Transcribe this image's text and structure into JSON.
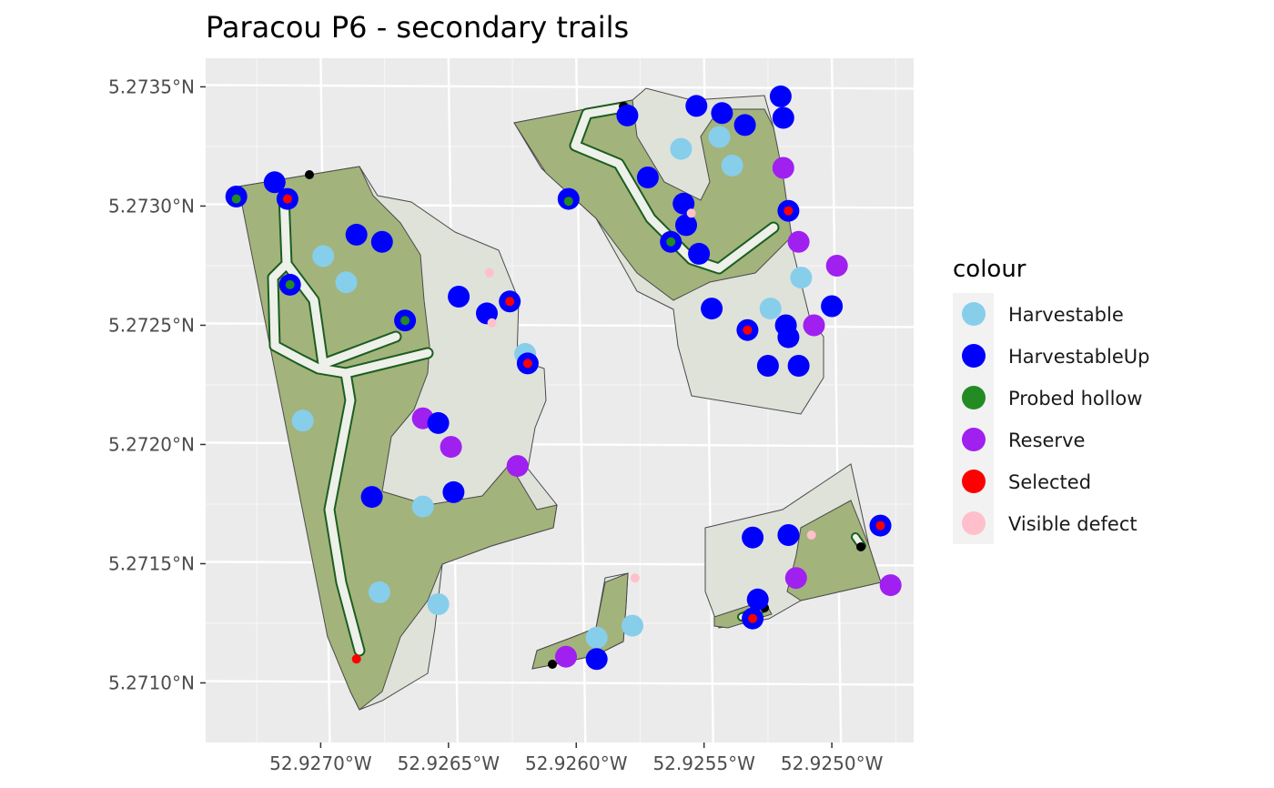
{
  "chart_data": {
    "type": "scatter",
    "title": "Paracou P6 - secondary trails",
    "x_ticks": [
      {
        "value": -52.927,
        "label": "52.9270°W"
      },
      {
        "value": -52.9265,
        "label": "52.9265°W"
      },
      {
        "value": -52.926,
        "label": "52.9260°W"
      },
      {
        "value": -52.9255,
        "label": "52.9255°W"
      },
      {
        "value": -52.925,
        "label": "52.9250°W"
      }
    ],
    "y_ticks": [
      {
        "value": 5.2735,
        "label": "5.2735°N"
      },
      {
        "value": 5.273,
        "label": "5.2730°N"
      },
      {
        "value": 5.2725,
        "label": "5.2725°N"
      },
      {
        "value": 5.272,
        "label": "5.2720°N"
      },
      {
        "value": 5.2715,
        "label": "5.2715°N"
      },
      {
        "value": 5.271,
        "label": "5.2710°N"
      }
    ],
    "xlim": [
      -52.92745,
      -52.92468
    ],
    "ylim": [
      5.27075,
      5.27362
    ],
    "grid": true,
    "legend": {
      "title": "colour",
      "position": "right",
      "entries": [
        {
          "label": "Harvestable",
          "color": "#87CEEB"
        },
        {
          "label": "HarvestableUp",
          "color": "#0000FF"
        },
        {
          "label": "Probed hollow",
          "color": "#228B22"
        },
        {
          "label": "Reserve",
          "color": "#A020F0"
        },
        {
          "label": "Selected",
          "color": "#FF0000"
        },
        {
          "label": "Visible defect",
          "color": "#FFC0CB"
        }
      ]
    },
    "series": [
      {
        "name": "Harvestable",
        "color": "#87CEEB",
        "points": [
          [
            -52.92699,
            5.27279
          ],
          [
            -52.9269,
            5.27268
          ],
          [
            -52.92707,
            5.2721
          ],
          [
            -52.9266,
            5.27174
          ],
          [
            -52.92677,
            5.27138
          ],
          [
            -52.92654,
            5.27133
          ],
          [
            -52.9262,
            5.27238
          ],
          [
            -52.92592,
            5.27119
          ],
          [
            -52.92578,
            5.27124
          ],
          [
            -52.92559,
            5.27324
          ],
          [
            -52.92544,
            5.27329
          ],
          [
            -52.92539,
            5.27317
          ],
          [
            -52.92524,
            5.27257
          ],
          [
            -52.92512,
            5.2727
          ]
        ]
      },
      {
        "name": "HarvestableUp",
        "color": "#0000FF",
        "points": [
          [
            -52.92733,
            5.27304
          ],
          [
            -52.92718,
            5.2731
          ],
          [
            -52.92713,
            5.27303
          ],
          [
            -52.92712,
            5.27267
          ],
          [
            -52.92686,
            5.27288
          ],
          [
            -52.92676,
            5.27285
          ],
          [
            -52.92667,
            5.27252
          ],
          [
            -52.92646,
            5.27262
          ],
          [
            -52.92635,
            5.27255
          ],
          [
            -52.92626,
            5.2726
          ],
          [
            -52.92619,
            5.27234
          ],
          [
            -52.92648,
            5.2718
          ],
          [
            -52.92654,
            5.27209
          ],
          [
            -52.9268,
            5.27178
          ],
          [
            -52.92603,
            5.27303
          ],
          [
            -52.9258,
            5.27338
          ],
          [
            -52.92572,
            5.27312
          ],
          [
            -52.92563,
            5.27285
          ],
          [
            -52.92558,
            5.27301
          ],
          [
            -52.92557,
            5.27292
          ],
          [
            -52.92553,
            5.27342
          ],
          [
            -52.92552,
            5.2728
          ],
          [
            -52.92547,
            5.27257
          ],
          [
            -52.92543,
            5.27339
          ],
          [
            -52.92533,
            5.27248
          ],
          [
            -52.92534,
            5.27334
          ],
          [
            -52.9252,
            5.27346
          ],
          [
            -52.92519,
            5.27337
          ],
          [
            -52.92517,
            5.27298
          ],
          [
            -52.92518,
            5.2725
          ],
          [
            -52.92517,
            5.27245
          ],
          [
            -52.92513,
            5.27233
          ],
          [
            -52.92525,
            5.27233
          ],
          [
            -52.925,
            5.27258
          ],
          [
            -52.92592,
            5.2711
          ],
          [
            -52.92531,
            5.27161
          ],
          [
            -52.92517,
            5.27162
          ],
          [
            -52.92529,
            5.27135
          ],
          [
            -52.92531,
            5.27127
          ],
          [
            -52.92481,
            5.27166
          ]
        ]
      },
      {
        "name": "Probed hollow",
        "color": "#228B22",
        "points": [
          [
            -52.92733,
            5.27303
          ],
          [
            -52.92712,
            5.27267
          ],
          [
            -52.92667,
            5.27252
          ],
          [
            -52.92603,
            5.27302
          ],
          [
            -52.92563,
            5.27285
          ]
        ]
      },
      {
        "name": "Reserve",
        "color": "#A020F0",
        "points": [
          [
            -52.9266,
            5.27211
          ],
          [
            -52.92649,
            5.27199
          ],
          [
            -52.92623,
            5.27191
          ],
          [
            -52.92519,
            5.27316
          ],
          [
            -52.92513,
            5.27285
          ],
          [
            -52.92507,
            5.2725
          ],
          [
            -52.92498,
            5.27275
          ],
          [
            -52.92604,
            5.27111
          ],
          [
            -52.92514,
            5.27144
          ],
          [
            -52.92477,
            5.27141
          ]
        ]
      },
      {
        "name": "Selected",
        "color": "#FF0000",
        "points": [
          [
            -52.92713,
            5.27303
          ],
          [
            -52.92686,
            5.2711
          ],
          [
            -52.92626,
            5.2726
          ],
          [
            -52.92619,
            5.27234
          ],
          [
            -52.92533,
            5.27248
          ],
          [
            -52.92517,
            5.27298
          ],
          [
            -52.92531,
            5.27127
          ],
          [
            -52.92481,
            5.27166
          ]
        ]
      },
      {
        "name": "Visible defect",
        "color": "#FFC0CB",
        "points": [
          [
            -52.92634,
            5.27272
          ],
          [
            -52.92633,
            5.27251
          ],
          [
            -52.92555,
            5.27297
          ],
          [
            -52.92577,
            5.27144
          ],
          [
            -52.92508,
            5.27162
          ]
        ]
      }
    ]
  }
}
